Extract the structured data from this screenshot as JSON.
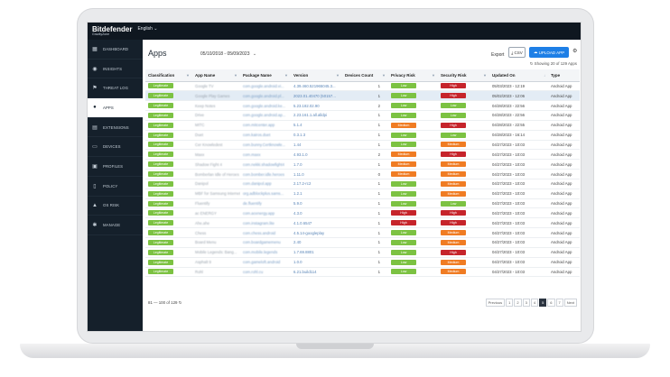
{
  "brand": {
    "name": "Bitdefender",
    "sub": "GravityZone",
    "language": "English"
  },
  "sidebar": {
    "items": [
      {
        "label": "DASHBOARD",
        "icon": "dashboard-icon",
        "glyph": "▦"
      },
      {
        "label": "INSIGHTS",
        "icon": "eye-icon",
        "glyph": "◉"
      },
      {
        "label": "THREAT LOG",
        "icon": "flag-icon",
        "glyph": "⚑"
      },
      {
        "label": "APPS",
        "icon": "apps-icon",
        "glyph": "●"
      },
      {
        "label": "EXTENSIONS",
        "icon": "extensions-icon",
        "glyph": "▤"
      },
      {
        "label": "DEVICES",
        "icon": "devices-icon",
        "glyph": "▭"
      },
      {
        "label": "PROFILES",
        "icon": "profiles-icon",
        "glyph": "▣"
      },
      {
        "label": "POLICY",
        "icon": "policy-icon",
        "glyph": "▯"
      },
      {
        "label": "OS RISK",
        "icon": "warning-icon",
        "glyph": "▲"
      },
      {
        "label": "MANAGE",
        "icon": "wrench-icon",
        "glyph": "✱"
      }
    ],
    "active_index": 3
  },
  "main": {
    "title": "Apps",
    "date_range": "05/10/2018 - 05/09/2023",
    "export_label": "Export",
    "csv_label": "CSV",
    "upload_label": "UPLOAD APP",
    "showing": "Showing 20 of 129 Apps",
    "range_label": "81 — 100 of 129",
    "pages": [
      "Previous",
      "1",
      "2",
      "3",
      "4",
      "5",
      "6",
      "7",
      "Next"
    ],
    "current_page": "5"
  },
  "table": {
    "columns": [
      "Classification",
      "App Name",
      "Package Name",
      "Version",
      "Devices Count",
      "Privacy Risk",
      "Security Risk",
      "Updated On",
      "Type"
    ],
    "rows": [
      {
        "cls": "Legitimate",
        "name": "Google TV",
        "pkg": "com.google.android.vi...",
        "ver": "4.39.460.521965045.3...",
        "count": "1",
        "privacy": "Low",
        "security": "High",
        "updated": "05/03/2023 - 12:19",
        "type": "Android App"
      },
      {
        "cls": "Legitimate",
        "name": "Google Play Games",
        "pkg": "com.google.android.pl...",
        "ver": "2023.01.40470 (50157...",
        "count": "1",
        "privacy": "Low",
        "security": "High",
        "updated": "05/02/2023 - 12:06",
        "type": "Android App"
      },
      {
        "cls": "Legitimate",
        "name": "Keep Notes",
        "pkg": "com.google.android.ke...",
        "ver": "5.23.182.02.90",
        "count": "2",
        "privacy": "Low",
        "security": "Low",
        "updated": "04/28/2023 - 22:56",
        "type": "Android App"
      },
      {
        "cls": "Legitimate",
        "name": "Drive",
        "pkg": "com.google.android.ap...",
        "ver": "2.23.161.1.all.alldpi",
        "count": "1",
        "privacy": "Low",
        "security": "Low",
        "updated": "04/28/2023 - 22:56",
        "type": "Android App"
      },
      {
        "cls": "Legitimate",
        "name": "MITC",
        "pkg": "com.mitcenter.app",
        "ver": "5.1.4",
        "count": "1",
        "privacy": "Medium",
        "security": "High",
        "updated": "04/28/2023 - 22:55",
        "type": "Android App"
      },
      {
        "cls": "Legitimate",
        "name": "Duet",
        "pkg": "com.kairos.duet",
        "ver": "0.3.1.3",
        "count": "1",
        "privacy": "Low",
        "security": "Low",
        "updated": "04/28/2023 - 16:14",
        "type": "Android App"
      },
      {
        "cls": "Legitimate",
        "name": "Cer Knowledest",
        "pkg": "com.bunny.Certknowle...",
        "ver": "1.44",
        "count": "1",
        "privacy": "Low",
        "security": "Medium",
        "updated": "04/27/2023 - 10:03",
        "type": "Android App"
      },
      {
        "cls": "Legitimate",
        "name": "Maxx",
        "pkg": "com.maxx",
        "ver": "4.93.1.0",
        "count": "2",
        "privacy": "Medium",
        "security": "High",
        "updated": "04/27/2023 - 10:03",
        "type": "Android App"
      },
      {
        "cls": "Legitimate",
        "name": "Shadow Fight 4",
        "pkg": "com.nekki.shadowfight4",
        "ver": "1.7.0",
        "count": "1",
        "privacy": "Medium",
        "security": "Medium",
        "updated": "04/27/2023 - 10:03",
        "type": "Android App"
      },
      {
        "cls": "Legitimate",
        "name": "Bomberlan Idle of Heroes",
        "pkg": "com.bomber.idle.heroes",
        "ver": "1.11.0",
        "count": "0",
        "privacy": "Medium",
        "security": "Medium",
        "updated": "04/27/2023 - 10:03",
        "type": "Android App"
      },
      {
        "cls": "Legitimate",
        "name": "Danipol",
        "pkg": "com.danipol.app",
        "ver": "2.17.2-rc2",
        "count": "1",
        "privacy": "Low",
        "security": "Medium",
        "updated": "04/27/2023 - 10:03",
        "type": "Android App"
      },
      {
        "cls": "Legitimate",
        "name": "MBF for Samsung Internet",
        "pkg": "org.adblockplus.sams...",
        "ver": "1.2.1",
        "count": "1",
        "privacy": "Low",
        "security": "Medium",
        "updated": "04/27/2023 - 10:03",
        "type": "Android App"
      },
      {
        "cls": "Legitimate",
        "name": "Fluentify",
        "pkg": "de.fluentify",
        "ver": "5.9.0",
        "count": "1",
        "privacy": "Low",
        "security": "Low",
        "updated": "04/27/2023 - 10:03",
        "type": "Android App"
      },
      {
        "cls": "Legitimate",
        "name": "ac ENERGY",
        "pkg": "com.acenergy.app",
        "ver": "4.3.0",
        "count": "1",
        "privacy": "High",
        "security": "High",
        "updated": "04/27/2023 - 10:03",
        "type": "Android App"
      },
      {
        "cls": "Legitimate",
        "name": "Ahe.ahe",
        "pkg": "com.instagram.lite",
        "ver": "4.1.0.6547",
        "count": "1",
        "privacy": "High",
        "security": "High",
        "updated": "04/27/2023 - 10:03",
        "type": "Android App"
      },
      {
        "cls": "Legitimate",
        "name": "Chess",
        "pkg": "com.chess.android",
        "ver": "4.5.14-googleplay",
        "count": "1",
        "privacy": "Low",
        "security": "Medium",
        "updated": "04/27/2023 - 10:03",
        "type": "Android App"
      },
      {
        "cls": "Legitimate",
        "name": "Board Menu",
        "pkg": "com.boardgamemenu",
        "ver": "2.40",
        "count": "1",
        "privacy": "Low",
        "security": "Medium",
        "updated": "04/27/2023 - 10:03",
        "type": "Android App"
      },
      {
        "cls": "Legitimate",
        "name": "Mobile Legends: Bang...",
        "pkg": "com.mobile.legends",
        "ver": "1.7.69.8801",
        "count": "1",
        "privacy": "Low",
        "security": "High",
        "updated": "04/27/2023 - 10:03",
        "type": "Android App"
      },
      {
        "cls": "Legitimate",
        "name": "Asphalt 9",
        "pkg": "com.gameloft.android",
        "ver": "1.0.0",
        "count": "1",
        "privacy": "Low",
        "security": "Medium",
        "updated": "04/27/2023 - 10:03",
        "type": "Android App"
      },
      {
        "cls": "Legitimate",
        "name": "Rohl",
        "pkg": "com.rohl.cu",
        "ver": "6.21.build114",
        "count": "1",
        "privacy": "Low",
        "security": "Medium",
        "updated": "04/27/2023 - 10:03",
        "type": "Android App"
      }
    ]
  },
  "colors": {
    "low": "#7cc242",
    "medium": "#f07c23",
    "high": "#c6242b",
    "accent": "#1e7fe6",
    "sidebar": "#15202b"
  }
}
